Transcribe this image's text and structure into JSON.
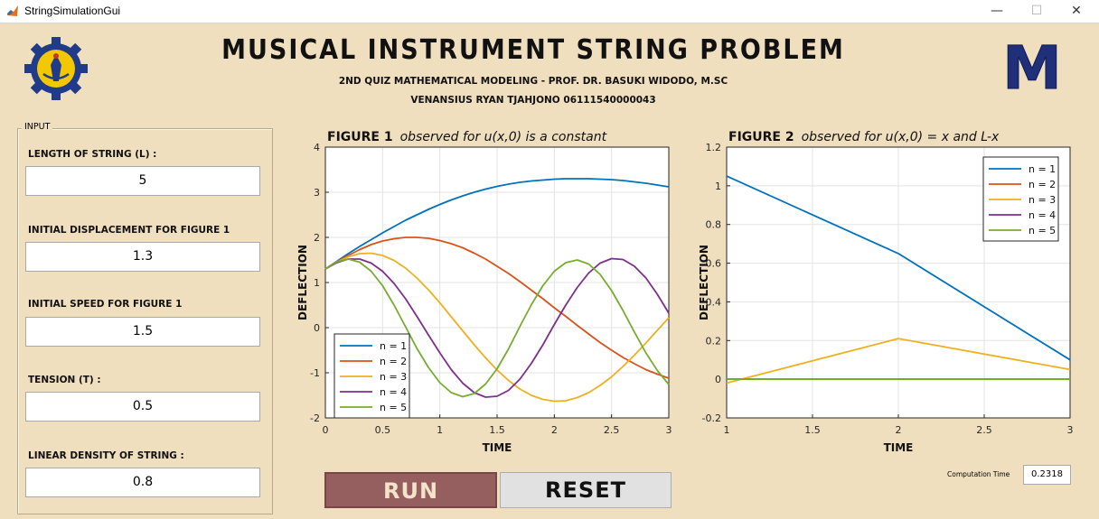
{
  "window": {
    "title": "StringSimulationGui",
    "minimize": "—",
    "maximize": "☐",
    "close": "✕"
  },
  "header": {
    "title": "MUSICAL INSTRUMENT STRING PROBLEM",
    "subtitle": "2ND QUIZ MATHEMATICAL MODELING - PROF. DR. BASUKI WIDODO, M.SC",
    "author": "VENANSIUS RYAN TJAHJONO 06111540000043",
    "right_logo_letter": "M"
  },
  "input_panel": {
    "legend": "INPUT",
    "fields": [
      {
        "label": "LENGTH OF STRING (L) :",
        "value": "5"
      },
      {
        "label": "INITIAL DISPLACEMENT FOR FIGURE 1",
        "value": "1.3"
      },
      {
        "label": "INITIAL SPEED FOR FIGURE 1",
        "value": "1.5"
      },
      {
        "label": "TENSION (T) :",
        "value": "0.5"
      },
      {
        "label": "LINEAR DENSITY OF STRING :",
        "value": "0.8"
      }
    ]
  },
  "buttons": {
    "run": "RUN",
    "reset": "RESET"
  },
  "computation": {
    "label": "Computation Time",
    "value": "0.2318"
  },
  "colors": {
    "background": "#f0dfbf",
    "run_button": "#965f5f",
    "n1": "#0072bd",
    "n2": "#d95319",
    "n3": "#edb120",
    "n4": "#7e2f8e",
    "n5": "#77ac30"
  },
  "chart_data": [
    {
      "type": "line",
      "title_bold": "FIGURE 1",
      "title_italic": "observed for u(x,0) is a constant",
      "xlabel": "TIME",
      "ylabel": "DEFLECTION",
      "xlim": [
        0,
        3
      ],
      "ylim": [
        -2,
        4
      ],
      "xticks": [
        0,
        0.5,
        1,
        1.5,
        2,
        2.5,
        3
      ],
      "yticks": [
        -2,
        -1,
        0,
        1,
        2,
        3,
        4
      ],
      "xtick_labels": [
        "0",
        "0.5",
        "1",
        "1.5",
        "2",
        "2.5",
        "3"
      ],
      "ytick_labels": [
        "-2",
        "-1",
        "0",
        "1",
        "2",
        "3",
        "4"
      ],
      "grid": true,
      "legend_position": "bottom-left",
      "x": [
        0,
        0.1,
        0.2,
        0.3,
        0.4,
        0.5,
        0.6,
        0.7,
        0.8,
        0.9,
        1.0,
        1.1,
        1.2,
        1.3,
        1.4,
        1.5,
        1.6,
        1.7,
        1.8,
        1.9,
        2.0,
        2.1,
        2.2,
        2.3,
        2.4,
        2.5,
        2.6,
        2.7,
        2.8,
        2.9,
        3.0
      ],
      "series": [
        {
          "name": "n = 1",
          "color": "#0072bd",
          "values": [
            1.3,
            1.47,
            1.64,
            1.8,
            1.95,
            2.1,
            2.24,
            2.38,
            2.5,
            2.62,
            2.73,
            2.83,
            2.92,
            3.0,
            3.07,
            3.13,
            3.18,
            3.22,
            3.25,
            3.27,
            3.29,
            3.3,
            3.3,
            3.3,
            3.29,
            3.28,
            3.26,
            3.23,
            3.2,
            3.16,
            3.12
          ]
        },
        {
          "name": "n = 2",
          "color": "#d95319",
          "values": [
            1.3,
            1.46,
            1.6,
            1.73,
            1.84,
            1.92,
            1.97,
            2.0,
            2.0,
            1.98,
            1.93,
            1.86,
            1.77,
            1.65,
            1.52,
            1.36,
            1.2,
            1.02,
            0.83,
            0.64,
            0.44,
            0.25,
            0.05,
            -0.14,
            -0.33,
            -0.5,
            -0.66,
            -0.8,
            -0.93,
            -1.03,
            -1.12
          ]
        },
        {
          "name": "n = 3",
          "color": "#edb120",
          "values": [
            1.3,
            1.45,
            1.57,
            1.64,
            1.65,
            1.6,
            1.49,
            1.32,
            1.1,
            0.84,
            0.55,
            0.24,
            -0.07,
            -0.38,
            -0.67,
            -0.94,
            -1.17,
            -1.36,
            -1.5,
            -1.59,
            -1.63,
            -1.62,
            -1.55,
            -1.44,
            -1.28,
            -1.09,
            -0.86,
            -0.61,
            -0.34,
            -0.06,
            0.22
          ]
        },
        {
          "name": "n = 4",
          "color": "#7e2f8e",
          "values": [
            1.3,
            1.44,
            1.52,
            1.52,
            1.43,
            1.25,
            0.98,
            0.64,
            0.25,
            -0.16,
            -0.56,
            -0.93,
            -1.23,
            -1.44,
            -1.54,
            -1.52,
            -1.39,
            -1.14,
            -0.79,
            -0.38,
            0.07,
            0.5,
            0.89,
            1.21,
            1.43,
            1.53,
            1.51,
            1.36,
            1.1,
            0.74,
            0.32
          ]
        },
        {
          "name": "n = 5",
          "color": "#77ac30",
          "values": [
            1.3,
            1.46,
            1.52,
            1.45,
            1.25,
            0.93,
            0.5,
            0.02,
            -0.46,
            -0.88,
            -1.22,
            -1.44,
            -1.53,
            -1.46,
            -1.25,
            -0.91,
            -0.47,
            0.03,
            0.51,
            0.93,
            1.25,
            1.44,
            1.5,
            1.41,
            1.18,
            0.82,
            0.38,
            -0.1,
            -0.56,
            -0.95,
            -1.26
          ]
        }
      ]
    },
    {
      "type": "line",
      "title_bold": "FIGURE 2",
      "title_italic": "observed for u(x,0) = x and L-x",
      "xlabel": "TIME",
      "ylabel": "DEFLECTION",
      "xlim": [
        1,
        3
      ],
      "ylim": [
        -0.2,
        1.2
      ],
      "xticks": [
        1,
        1.5,
        2,
        2.5,
        3
      ],
      "yticks": [
        -0.2,
        0,
        0.2,
        0.4,
        0.6,
        0.8,
        1,
        1.2
      ],
      "xtick_labels": [
        "1",
        "1.5",
        "2",
        "2.5",
        "3"
      ],
      "ytick_labels": [
        "-0.2",
        "0",
        "0.2",
        "0.4",
        "0.6",
        "0.8",
        "1",
        "1.2"
      ],
      "grid": true,
      "legend_position": "top-right",
      "x": [
        1,
        2,
        3
      ],
      "series": [
        {
          "name": "n = 1",
          "color": "#0072bd",
          "values": [
            1.05,
            0.65,
            0.1
          ]
        },
        {
          "name": "n = 2",
          "color": "#d95319",
          "values": [
            0,
            0,
            0
          ]
        },
        {
          "name": "n = 3",
          "color": "#edb120",
          "values": [
            -0.02,
            0.21,
            0.05
          ]
        },
        {
          "name": "n = 4",
          "color": "#7e2f8e",
          "values": [
            0,
            0,
            0
          ]
        },
        {
          "name": "n = 5",
          "color": "#77ac30",
          "values": [
            0,
            0,
            0
          ]
        }
      ]
    }
  ]
}
